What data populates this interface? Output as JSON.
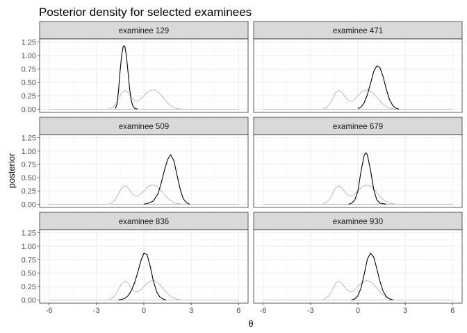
{
  "chart_data": {
    "type": "line",
    "title": "Posterior density for selected examinees",
    "xlabel": "θ",
    "ylabel": "posterior",
    "xlim": [
      -6.6,
      6.6
    ],
    "ylim": [
      -0.06,
      1.31
    ],
    "x_ticks": [
      -6,
      -3,
      0,
      3,
      6
    ],
    "x_tick_labels": [
      "-6",
      "-3",
      "0",
      "3",
      "6"
    ],
    "y_ticks": [
      0,
      0.25,
      0.5,
      0.75,
      1.0,
      1.25
    ],
    "y_tick_labels": [
      "0.00",
      "0.25",
      "0.50",
      "0.75",
      "1.00",
      "1.25"
    ],
    "grid": true,
    "colors": {
      "posterior": "#000000",
      "prior": "#b3b3b3",
      "strip": "#d9d9d9",
      "grid": "#ebebeb",
      "border": "#333333"
    },
    "baseline_range": [
      -6,
      6
    ],
    "prior": {
      "x": [
        -2.2,
        -2.0,
        -1.8,
        -1.6,
        -1.4,
        -1.2,
        -1.0,
        -0.8,
        -0.6,
        -0.4,
        -0.2,
        0.0,
        0.2,
        0.4,
        0.6,
        0.8,
        1.0,
        1.2,
        1.4,
        1.6,
        1.8,
        2.0,
        2.2,
        2.4
      ],
      "y": [
        0.01,
        0.03,
        0.09,
        0.2,
        0.31,
        0.35,
        0.31,
        0.22,
        0.16,
        0.15,
        0.19,
        0.25,
        0.31,
        0.35,
        0.36,
        0.34,
        0.29,
        0.22,
        0.15,
        0.09,
        0.05,
        0.02,
        0.01,
        0.0
      ]
    },
    "facets": [
      {
        "strip": "examinee 129",
        "posterior": {
          "x": [
            -1.8,
            -1.7,
            -1.6,
            -1.5,
            -1.4,
            -1.3,
            -1.2,
            -1.1,
            -1.0,
            -0.9,
            -0.8,
            -0.7,
            -0.6,
            -0.5,
            -0.4
          ],
          "y": [
            0.01,
            0.1,
            0.35,
            0.72,
            1.02,
            1.18,
            1.17,
            0.98,
            0.68,
            0.38,
            0.17,
            0.06,
            0.02,
            0.01,
            0.0
          ]
        }
      },
      {
        "strip": "examinee 471",
        "posterior": {
          "x": [
            0.0,
            0.2,
            0.4,
            0.6,
            0.8,
            1.0,
            1.2,
            1.4,
            1.6,
            1.8,
            2.0,
            2.2,
            2.4,
            2.6
          ],
          "y": [
            0.01,
            0.04,
            0.12,
            0.27,
            0.48,
            0.7,
            0.81,
            0.77,
            0.6,
            0.37,
            0.18,
            0.07,
            0.02,
            0.0
          ]
        }
      },
      {
        "strip": "examinee 509",
        "posterior": {
          "x": [
            0.0,
            0.3,
            0.6,
            0.9,
            1.1,
            1.3,
            1.5,
            1.7,
            1.9,
            2.1,
            2.3,
            2.5,
            2.7,
            2.9
          ],
          "y": [
            0.0,
            0.02,
            0.06,
            0.2,
            0.4,
            0.63,
            0.84,
            0.93,
            0.82,
            0.55,
            0.28,
            0.1,
            0.03,
            0.0
          ]
        }
      },
      {
        "strip": "examinee 679",
        "posterior": {
          "x": [
            -0.6,
            -0.4,
            -0.2,
            0.0,
            0.2,
            0.4,
            0.5,
            0.6,
            0.8,
            1.0,
            1.2,
            1.4,
            1.6,
            1.8
          ],
          "y": [
            0.0,
            0.02,
            0.08,
            0.25,
            0.62,
            0.92,
            0.97,
            0.93,
            0.64,
            0.28,
            0.08,
            0.02,
            0.01,
            0.0
          ]
        }
      },
      {
        "strip": "examinee 836",
        "posterior": {
          "x": [
            -1.6,
            -1.4,
            -1.2,
            -1.0,
            -0.8,
            -0.6,
            -0.4,
            -0.2,
            0.0,
            0.2,
            0.4,
            0.6,
            0.8,
            1.0,
            1.2,
            1.4
          ],
          "y": [
            0.0,
            0.01,
            0.03,
            0.08,
            0.17,
            0.31,
            0.5,
            0.72,
            0.87,
            0.85,
            0.63,
            0.36,
            0.16,
            0.06,
            0.02,
            0.0
          ]
        }
      },
      {
        "strip": "examinee 930",
        "posterior": {
          "x": [
            -0.4,
            -0.2,
            0.0,
            0.2,
            0.4,
            0.6,
            0.8,
            1.0,
            1.2,
            1.4,
            1.6,
            1.8,
            2.0,
            2.2
          ],
          "y": [
            0.0,
            0.02,
            0.08,
            0.22,
            0.48,
            0.76,
            0.87,
            0.8,
            0.58,
            0.34,
            0.16,
            0.06,
            0.02,
            0.0
          ]
        }
      }
    ]
  }
}
